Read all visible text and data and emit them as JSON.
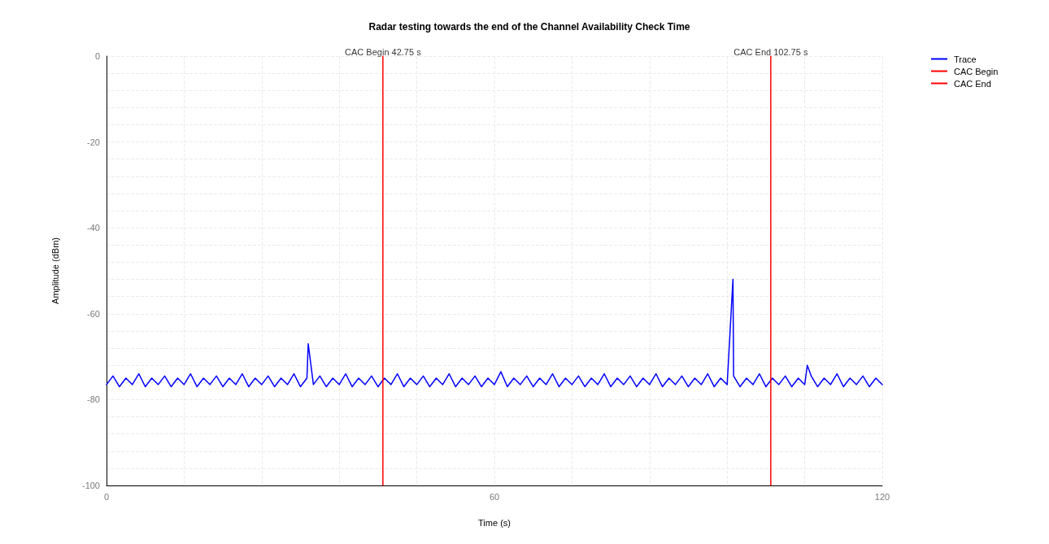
{
  "chart_data": {
    "type": "line",
    "title": "Radar testing towards the end of the Channel Availability Check Time",
    "xlabel": "Time (s)",
    "ylabel": "Amplitude (dBm)",
    "xlim": [
      0,
      120
    ],
    "ylim": [
      -100,
      0
    ],
    "xticks": [
      0,
      {
        "value": 12,
        "label": null
      },
      {
        "value": 24,
        "label": null
      },
      {
        "value": 36,
        "label": null
      },
      {
        "value": 48,
        "label": null
      },
      60,
      {
        "value": 72,
        "label": null
      },
      {
        "value": 84,
        "label": null
      },
      {
        "value": 96,
        "label": null
      },
      {
        "value": 108,
        "label": null
      },
      120
    ],
    "yticks": [
      -100,
      {
        "value": -96,
        "label": null
      },
      {
        "value": -92,
        "label": null
      },
      {
        "value": -88,
        "label": null
      },
      {
        "value": -84,
        "label": null
      },
      -80,
      {
        "value": -76,
        "label": null
      },
      {
        "value": -72,
        "label": null
      },
      {
        "value": -68,
        "label": null
      },
      {
        "value": -64,
        "label": null
      },
      -60,
      {
        "value": -56,
        "label": null
      },
      {
        "value": -52,
        "label": null
      },
      {
        "value": -48,
        "label": null
      },
      {
        "value": -44,
        "label": null
      },
      -40,
      {
        "value": -36,
        "label": null
      },
      {
        "value": -32,
        "label": null
      },
      {
        "value": -28,
        "label": null
      },
      {
        "value": -24,
        "label": null
      },
      -20,
      {
        "value": -16,
        "label": null
      },
      {
        "value": -12,
        "label": null
      },
      {
        "value": -8,
        "label": null
      },
      {
        "value": -4,
        "label": null
      },
      0
    ],
    "grid": true,
    "legend": "top right",
    "marker": "none",
    "line_style": "solid",
    "series": [
      {
        "name": "Trace",
        "color": "#0000ff",
        "x": [
          0,
          1,
          2,
          3,
          4,
          5,
          6,
          7,
          8,
          9,
          10,
          11,
          12,
          13,
          14,
          15,
          16,
          17,
          18,
          19,
          20,
          21,
          22,
          23,
          24,
          25,
          26,
          27,
          28,
          29,
          30,
          31,
          31.2,
          32,
          33,
          34,
          35,
          36,
          37,
          38,
          39,
          40,
          41,
          42,
          43,
          44,
          45,
          46,
          47,
          48,
          49,
          50,
          51,
          52,
          53,
          54,
          55,
          56,
          57,
          58,
          59,
          60,
          61,
          62,
          63,
          64,
          65,
          66,
          67,
          68,
          69,
          70,
          71,
          72,
          73,
          74,
          75,
          76,
          77,
          78,
          79,
          80,
          81,
          82,
          83,
          84,
          85,
          86,
          87,
          88,
          89,
          90,
          91,
          92,
          93,
          94,
          95,
          96,
          96.9,
          97,
          98,
          99,
          100,
          101,
          102,
          103,
          104,
          105,
          106,
          107,
          108,
          108.4,
          109,
          110,
          111,
          112,
          113,
          114,
          115,
          116,
          117,
          118,
          119,
          120
        ],
        "values": [
          -76.5,
          -74.5,
          -77,
          -75,
          -76.5,
          -74,
          -77,
          -75,
          -76.5,
          -74.5,
          -77,
          -75,
          -76.5,
          -74,
          -77,
          -75,
          -76.5,
          -74.5,
          -77,
          -75,
          -76.5,
          -74,
          -77,
          -75,
          -76.5,
          -74.5,
          -77,
          -75,
          -76.5,
          -74,
          -77,
          -75,
          -67,
          -76.5,
          -74.5,
          -77,
          -75,
          -76.5,
          -74,
          -77,
          -75,
          -76.5,
          -74.5,
          -77,
          -75,
          -76.5,
          -74,
          -77,
          -75,
          -76.5,
          -74.5,
          -77,
          -75,
          -76.5,
          -74,
          -77,
          -75,
          -76.5,
          -74.5,
          -77,
          -75,
          -76.5,
          -73.5,
          -77,
          -75,
          -76.5,
          -74.5,
          -77,
          -75,
          -76.5,
          -74,
          -77,
          -75,
          -76.5,
          -74.5,
          -77,
          -75,
          -76.5,
          -74,
          -77,
          -75,
          -76.5,
          -74.5,
          -77,
          -75,
          -76.5,
          -74,
          -77,
          -75,
          -76.5,
          -74.5,
          -77,
          -75,
          -76.5,
          -74,
          -77,
          -75,
          -76.5,
          -52,
          -74.5,
          -77,
          -75,
          -76.5,
          -74,
          -77,
          -75,
          -76.5,
          -74.5,
          -77,
          -75,
          -76.5,
          -72,
          -74.5,
          -77,
          -75,
          -76.5,
          -74,
          -77,
          -75,
          -76.5,
          -74.5,
          -77,
          -75,
          -76.5
        ]
      },
      {
        "name": "CAC Begin",
        "color": "#ff0000",
        "x": [
          42.75,
          42.75
        ],
        "values": [
          -100,
          0
        ]
      },
      {
        "name": "CAC End",
        "color": "#ff0000",
        "x": [
          102.75,
          102.75
        ],
        "values": [
          -100,
          0
        ]
      }
    ],
    "annotations": [
      {
        "text": "CAC Begin 42.75 s",
        "x": 42.75,
        "y": 0
      },
      {
        "text": "CAC End 102.75 s",
        "x": 102.75,
        "y": 0
      }
    ]
  }
}
